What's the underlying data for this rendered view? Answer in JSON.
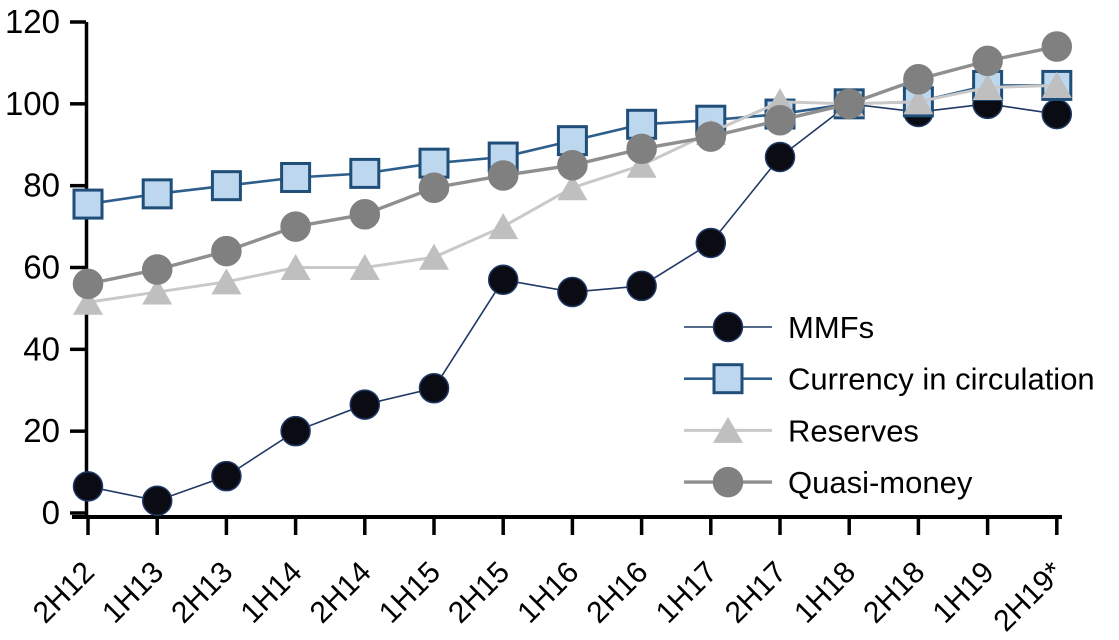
{
  "chart_data": {
    "type": "line",
    "title": "",
    "xlabel": "",
    "ylabel": "",
    "grid": false,
    "legend_position": "inside-right",
    "y_axis": {
      "min": 0,
      "max": 120,
      "step": 20,
      "ticks": [
        "0",
        "20",
        "40",
        "60",
        "80",
        "100",
        "120"
      ]
    },
    "categories": [
      "2H12",
      "1H13",
      "2H13",
      "1H14",
      "2H14",
      "1H15",
      "2H15",
      "1H16",
      "2H16",
      "1H17",
      "2H17",
      "1H18",
      "2H18",
      "1H19",
      "2H19*"
    ],
    "series": [
      {
        "name": "MMFs",
        "marker": "circle",
        "color": "#0b0b14",
        "marker_stroke": "#1f3864",
        "line_color": "#1f3864",
        "values": [
          6.5,
          3,
          9,
          20,
          26.5,
          30.5,
          57,
          54,
          55.5,
          66,
          87,
          100,
          98,
          100,
          97.5
        ]
      },
      {
        "name": "Currency in circulation",
        "marker": "square",
        "color": "#bdd7ee",
        "marker_stroke": "#1f4e79",
        "line_color": "#2e5f8c",
        "values": [
          75.5,
          78,
          80,
          82,
          83,
          85.5,
          87,
          91,
          95,
          96,
          97.5,
          100,
          100.5,
          104.5,
          104.5
        ]
      },
      {
        "name": "Reserves",
        "marker": "triangle",
        "color": "#bfbfbf",
        "marker_stroke": "#bfbfbf",
        "line_color": "#c9c9c9",
        "values": [
          51.5,
          54,
          56.5,
          60,
          60,
          62.5,
          70,
          79.5,
          85,
          93,
          100.5,
          100,
          100.5,
          104,
          104.5
        ]
      },
      {
        "name": "Quasi-money",
        "marker": "circle",
        "color": "#808080",
        "marker_stroke": "#808080",
        "line_color": "#8f8f8f",
        "values": [
          56,
          59.5,
          64,
          70,
          73,
          79.5,
          82.5,
          85,
          89,
          92,
          96,
          100,
          106,
          110.5,
          114
        ]
      }
    ]
  }
}
